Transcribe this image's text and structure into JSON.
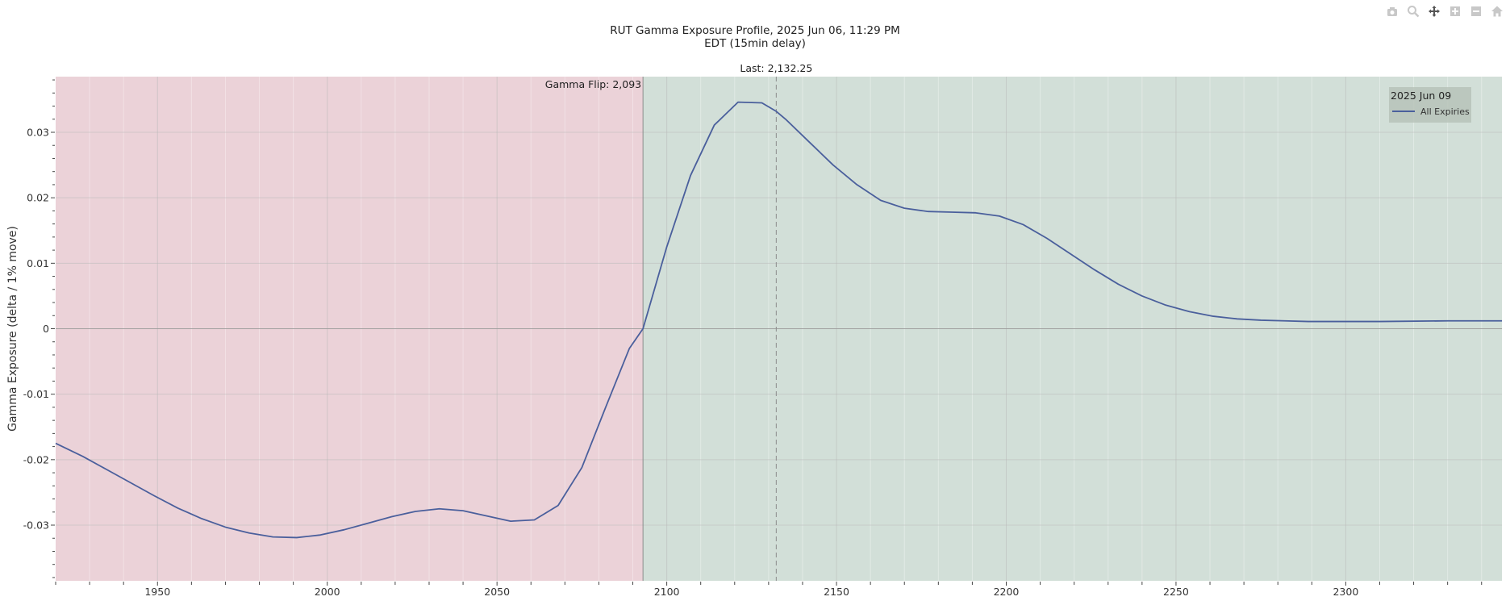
{
  "title_line1": "RUT Gamma Exposure Profile, 2025 Jun 06, 11:29 PM",
  "title_line2": "EDT (15min delay)",
  "modebar": [
    "camera-icon",
    "zoom-icon",
    "pan-icon",
    "zoom-in-icon",
    "zoom-out-icon",
    "home-icon"
  ],
  "chart_data": {
    "type": "line",
    "title": "RUT Gamma Exposure Profile, 2025 Jun 06, 11:29 PM EDT (15min delay)",
    "xlabel": "",
    "ylabel": "Gamma Exposure (delta / 1% move)",
    "xlim": [
      1920,
      2346
    ],
    "ylim": [
      -0.0385,
      0.0385
    ],
    "x_ticks": [
      1950,
      2000,
      2050,
      2100,
      2150,
      2200,
      2250,
      2300
    ],
    "y_ticks": [
      -0.03,
      -0.02,
      -0.01,
      0,
      0.01,
      0.02,
      0.03
    ],
    "y_tick_labels": [
      "-0.03",
      "-0.02",
      "-0.01",
      "0",
      "0.01",
      "0.02",
      "0.03"
    ],
    "grid": true,
    "legend": {
      "title": "2025 Jun 09",
      "placement": "top-right"
    },
    "series": [
      {
        "name": "All Expiries",
        "color": "#4a5f9c",
        "x": [
          1920,
          1928,
          1935,
          1942,
          1949,
          1956,
          1963,
          1970,
          1977,
          1984,
          1991,
          1998,
          2005,
          2012,
          2019,
          2026,
          2033,
          2040,
          2047,
          2054,
          2061,
          2068,
          2075,
          2082,
          2089,
          2093,
          2100,
          2107,
          2114,
          2121,
          2128,
          2132.25,
          2135,
          2142,
          2149,
          2156,
          2163,
          2170,
          2177,
          2184,
          2191,
          2198,
          2205,
          2212,
          2219,
          2226,
          2233,
          2240,
          2247,
          2254,
          2261,
          2268,
          2275,
          2282,
          2289,
          2296,
          2310,
          2330,
          2346
        ],
        "values": [
          -0.0175,
          -0.0195,
          -0.0215,
          -0.0235,
          -0.0255,
          -0.0274,
          -0.029,
          -0.0303,
          -0.0312,
          -0.0318,
          -0.0319,
          -0.0315,
          -0.0307,
          -0.0297,
          -0.0287,
          -0.0279,
          -0.0275,
          -0.0278,
          -0.0286,
          -0.0294,
          -0.0292,
          -0.027,
          -0.0212,
          -0.012,
          -0.003,
          0.0,
          0.0125,
          0.0234,
          0.0311,
          0.0346,
          0.0345,
          0.0332,
          0.032,
          0.0285,
          0.025,
          0.022,
          0.0196,
          0.0184,
          0.0179,
          0.0178,
          0.0177,
          0.0172,
          0.0159,
          0.0138,
          0.0114,
          0.009,
          0.0068,
          0.005,
          0.0036,
          0.0026,
          0.0019,
          0.0015,
          0.0013,
          0.0012,
          0.0011,
          0.0011,
          0.0011,
          0.0012,
          0.0012
        ]
      }
    ],
    "annotations": {
      "gamma_flip": {
        "x": 2093,
        "label": "Gamma Flip: 2,093"
      },
      "last": {
        "x": 2132.25,
        "label": "Last: 2,132.25"
      }
    },
    "regions": [
      {
        "from": 1920,
        "to": 2093,
        "color": "#ebd2d8"
      },
      {
        "from": 2093,
        "to": 2346,
        "color": "#d2dfd8"
      }
    ]
  }
}
